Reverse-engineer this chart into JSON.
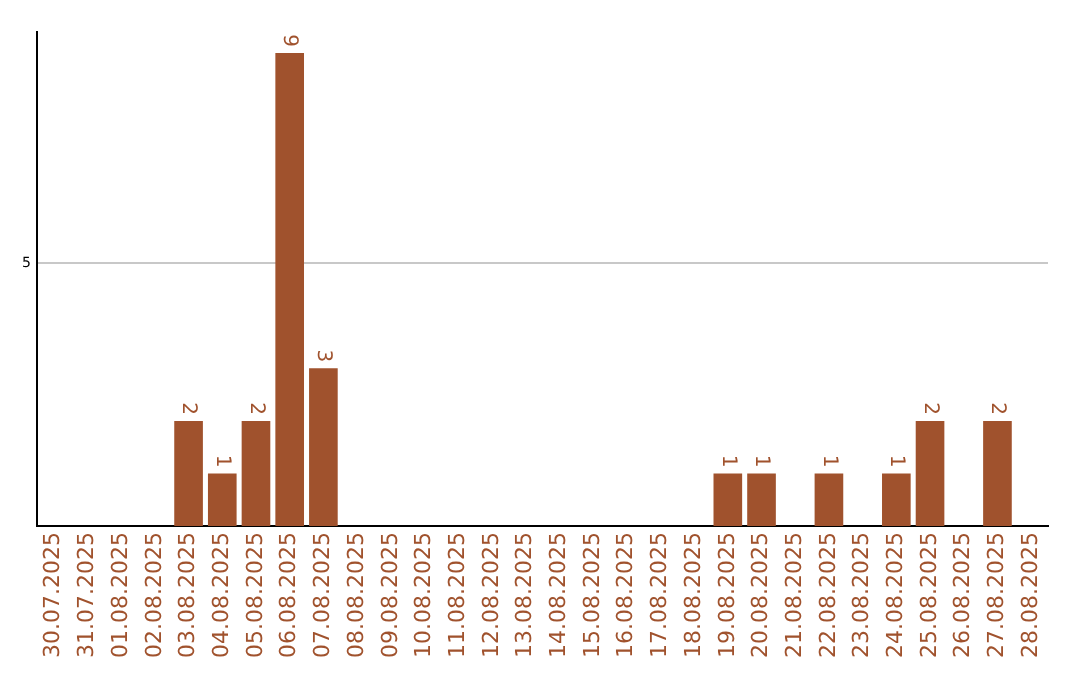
{
  "chart_data": {
    "type": "bar",
    "categories": [
      "30.07.2025",
      "31.07.2025",
      "01.08.2025",
      "02.08.2025",
      "03.08.2025",
      "04.08.2025",
      "05.08.2025",
      "06.08.2025",
      "07.08.2025",
      "08.08.2025",
      "09.08.2025",
      "10.08.2025",
      "11.08.2025",
      "12.08.2025",
      "13.08.2025",
      "14.08.2025",
      "15.08.2025",
      "16.08.2025",
      "17.08.2025",
      "18.08.2025",
      "19.08.2025",
      "20.08.2025",
      "21.08.2025",
      "22.08.2025",
      "23.08.2025",
      "24.08.2025",
      "25.08.2025",
      "26.08.2025",
      "27.08.2025",
      "28.08.2025"
    ],
    "values": [
      0,
      0,
      0,
      0,
      2,
      1,
      2,
      9,
      3,
      0,
      0,
      0,
      0,
      0,
      0,
      0,
      0,
      0,
      0,
      0,
      1,
      1,
      0,
      1,
      0,
      1,
      2,
      0,
      2,
      0
    ],
    "value_labels": [
      null,
      null,
      null,
      null,
      "2",
      "1",
      "2",
      "9",
      "3",
      null,
      null,
      null,
      null,
      null,
      null,
      null,
      null,
      null,
      null,
      null,
      "1",
      "1",
      null,
      "1",
      null,
      "1",
      "2",
      null,
      "2",
      null
    ],
    "color": "#a0522d",
    "ylim": [
      0,
      9.4
    ],
    "yticks": [
      5
    ],
    "grid": "y",
    "legend": false
  }
}
